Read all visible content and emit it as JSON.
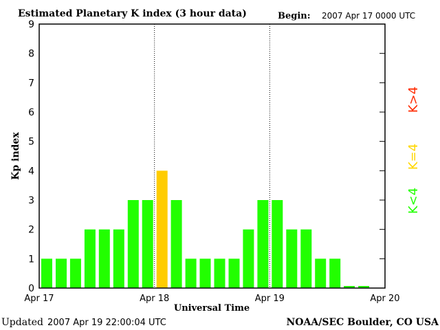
{
  "chart_data": {
    "type": "bar",
    "title": "Estimated Planetary K index (3 hour data)",
    "begin_label": "Begin:",
    "begin_value": "2007 Apr 17 0000 UTC",
    "xlabel": "Universal Time",
    "ylabel": "Kp index",
    "ylim": [
      0,
      9
    ],
    "yticks": [
      "0",
      "1",
      "2",
      "3",
      "4",
      "5",
      "6",
      "7",
      "8",
      "9"
    ],
    "xticks": [
      "Apr 17",
      "Apr 18",
      "Apr 19",
      "Apr 20"
    ],
    "slots_per_day": 8,
    "values": [
      1,
      1,
      1,
      2,
      2,
      2,
      3,
      3,
      4,
      3,
      1,
      1,
      1,
      1,
      2,
      3,
      3,
      2,
      2,
      1,
      1,
      0,
      0
    ],
    "grid": "dotted vertical lines at day boundaries",
    "legend": [
      {
        "label": "K>4",
        "color": "#ff2a00"
      },
      {
        "label": "K=4",
        "color": "#ffd700"
      },
      {
        "label": "K<4",
        "color": "#22ff00"
      }
    ],
    "colors": {
      "below": "#22ff00",
      "equal": "#ffcc00",
      "above": "#ff2a00"
    }
  },
  "footer": {
    "updated_label": "Updated",
    "updated_value": "2007 Apr 19 22:00:04 UTC",
    "source": "NOAA/SEC Boulder, CO USA"
  }
}
